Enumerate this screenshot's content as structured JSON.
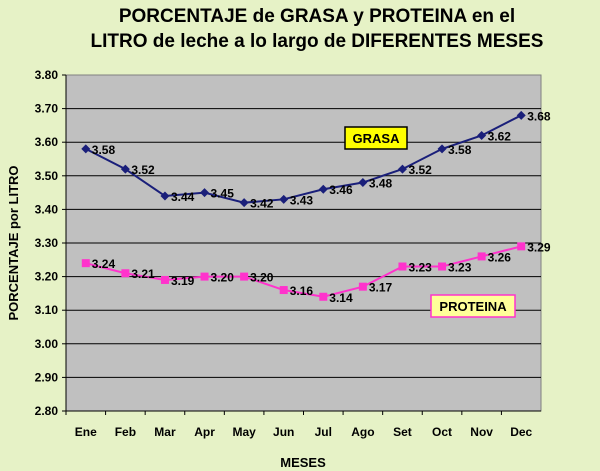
{
  "chart_data": {
    "type": "line",
    "title_lines": [
      "PORCENTAJE de GRASA y PROTEINA en el",
      "LITRO de leche a lo largo de DIFERENTES MESES"
    ],
    "xlabel": "MESES",
    "ylabel": "PORCENTAJE por LITRO",
    "ylim": [
      2.8,
      3.8
    ],
    "yticks": [
      "2.80",
      "2.90",
      "3.00",
      "3.10",
      "3.20",
      "3.30",
      "3.40",
      "3.50",
      "3.60",
      "3.70",
      "3.80"
    ],
    "categories": [
      "Ene",
      "Feb",
      "Mar",
      "Apr",
      "May",
      "Jun",
      "Jul",
      "Ago",
      "Set",
      "Oct",
      "Nov",
      "Dec"
    ],
    "grid": "horizontal",
    "series": [
      {
        "name": "GRASA",
        "color": "#1a1f7a",
        "marker": "diamond",
        "values": [
          3.58,
          3.52,
          3.44,
          3.45,
          3.42,
          3.43,
          3.46,
          3.48,
          3.52,
          3.58,
          3.62,
          3.68
        ],
        "labels": [
          "3.58",
          "3.52",
          "3.44",
          "3.45",
          "3.42",
          "3.43",
          "3.46",
          "3.48",
          "3.52",
          "3.58",
          "3.62",
          "3.68"
        ]
      },
      {
        "name": "PROTEINA",
        "color": "#ff33cc",
        "marker": "square",
        "values": [
          3.24,
          3.21,
          3.19,
          3.2,
          3.2,
          3.16,
          3.14,
          3.17,
          3.23,
          3.23,
          3.26,
          3.29
        ],
        "labels": [
          "3.24",
          "3.21",
          "3.19",
          "3.20",
          "3.20",
          "3.16",
          "3.14",
          "3.17",
          "3.23",
          "3.23",
          "3.26",
          "3.29"
        ]
      }
    ],
    "annotations": [
      {
        "text": "GRASA",
        "fill": "#ffff00",
        "border": "#000000"
      },
      {
        "text": "PROTEINA",
        "fill": "#ffff99",
        "border": "#ff33cc"
      }
    ],
    "colors": {
      "background": "#e6f2c6",
      "plot_area": "#c0c0c0",
      "grid": "#000000"
    }
  }
}
